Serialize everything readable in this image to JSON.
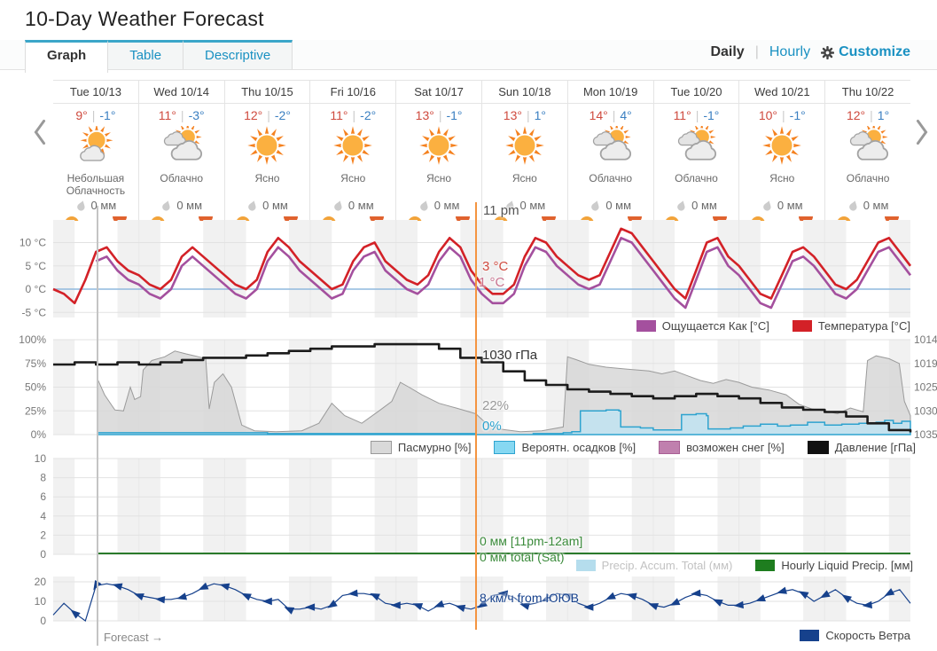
{
  "page": {
    "title": "10-Day Weather Forecast"
  },
  "tabs": {
    "graph": "Graph",
    "table": "Table",
    "descriptive": "Descriptive"
  },
  "view_toggle": {
    "daily": "Daily",
    "hourly": "Hourly",
    "customize": "Customize"
  },
  "forecast_label": "Forecast →",
  "forecast_days": [
    {
      "date": "Tue 10/13",
      "high": "9°",
      "low": "-1°",
      "icon": "partly",
      "condition": "Небольшая Облачность",
      "precip": "0 мм"
    },
    {
      "date": "Wed 10/14",
      "high": "11°",
      "low": "-3°",
      "icon": "mostly",
      "condition": "Облачно",
      "precip": "0 мм"
    },
    {
      "date": "Thu 10/15",
      "high": "12°",
      "low": "-2°",
      "icon": "sunny",
      "condition": "Ясно",
      "precip": "0 мм"
    },
    {
      "date": "Fri 10/16",
      "high": "11°",
      "low": "-2°",
      "icon": "sunny",
      "condition": "Ясно",
      "precip": "0 мм"
    },
    {
      "date": "Sat 10/17",
      "high": "13°",
      "low": "-1°",
      "icon": "sunny",
      "condition": "Ясно",
      "precip": "0 мм"
    },
    {
      "date": "Sun 10/18",
      "high": "13°",
      "low": "1°",
      "icon": "sunny",
      "condition": "Ясно",
      "precip": "0 мм"
    },
    {
      "date": "Mon 10/19",
      "high": "14°",
      "low": "4°",
      "icon": "mostly",
      "condition": "Облачно",
      "precip": "0 мм"
    },
    {
      "date": "Tue 10/20",
      "high": "11°",
      "low": "-1°",
      "icon": "mostly",
      "condition": "Облачно",
      "precip": "0 мм"
    },
    {
      "date": "Wed 10/21",
      "high": "10°",
      "low": "-1°",
      "icon": "sunny",
      "condition": "Ясно",
      "precip": "0 мм"
    },
    {
      "date": "Thu 10/22",
      "high": "12°",
      "low": "1°",
      "icon": "mostly",
      "condition": "Облачно",
      "precip": "0 мм"
    }
  ],
  "hover": {
    "time": "11 pm",
    "temperature": "3 °C",
    "feels_like": "1 °C",
    "pressure": "1030 гПа",
    "cloud_cover": "22%",
    "precip_prob": "0%",
    "precip_hour": "0 мм [11pm-12am]",
    "precip_total": "0 мм total (Sat)",
    "wind": "8 км/ч from ЮЮВ"
  },
  "colors": {
    "accent_tab": "#3ba6c9",
    "link": "#1a91c2",
    "temp_high": "#cf4a3e",
    "temp_low": "#3a7fc1",
    "temp_line": "#d32127",
    "feels_line": "#a4509e",
    "zero_line": "#8fb9dd",
    "cloud_fill": "#d7d7d7",
    "prob_line": "#2ea3cf",
    "pressure_line": "#1c1c1c",
    "precip_green": "#2a7a2b",
    "wind_navy": "#16418c",
    "hover_orange": "#f49440"
  },
  "chart_data": [
    {
      "type": "line",
      "title": "Temperature / Feels Like",
      "ytick_labels": [
        "10 °C",
        "5 °C",
        "0 °C",
        "-5 °C"
      ],
      "ytick_values": [
        10,
        5,
        0,
        -5
      ],
      "ylim": [
        -6.5,
        14.9
      ],
      "zero_line": 0,
      "legend": [
        {
          "label": "Ощущается Как [°C]",
          "color": "#a4509e"
        },
        {
          "label": "Температура [°C]",
          "color": "#d32127"
        }
      ],
      "series": [
        {
          "name": "Температура [°C]",
          "color": "#d32127",
          "t0": 0,
          "dt": 0.125,
          "values": [
            0,
            -1,
            -3,
            2,
            8,
            9,
            6,
            4,
            3,
            1,
            0,
            2,
            7,
            9,
            7,
            5,
            3,
            1,
            0,
            2,
            8,
            11,
            9,
            6,
            4,
            2,
            0,
            1,
            6,
            9,
            10,
            6,
            4,
            2,
            1,
            3,
            8,
            11,
            9,
            4,
            1,
            -1,
            -1,
            1,
            7,
            11,
            10,
            7,
            5,
            3,
            2,
            3,
            8,
            13,
            12,
            9,
            6,
            3,
            0,
            -2,
            4,
            10,
            11,
            7,
            5,
            2,
            -1,
            -2,
            3,
            8,
            9,
            7,
            4,
            1,
            0,
            2,
            6,
            10,
            11,
            8,
            5
          ]
        },
        {
          "name": "Ощущается Как [°C]",
          "color": "#a4509e",
          "t0": 0.5,
          "dt": 0.125,
          "values": [
            6,
            7,
            4,
            2,
            1,
            -1,
            -2,
            0,
            5,
            7,
            5,
            3,
            1,
            -1,
            -2,
            0,
            6,
            9,
            7,
            4,
            2,
            0,
            -2,
            -1,
            4,
            7,
            8,
            4,
            2,
            0,
            -1,
            1,
            6,
            9,
            7,
            2,
            -1,
            -3,
            -3,
            -1,
            5,
            9,
            8,
            5,
            3,
            1,
            0,
            1,
            6,
            11,
            10,
            7,
            4,
            1,
            -2,
            -4,
            2,
            8,
            9,
            5,
            3,
            0,
            -3,
            -4,
            1,
            6,
            7,
            5,
            2,
            -1,
            -2,
            0,
            4,
            8,
            9,
            6,
            3
          ]
        }
      ]
    },
    {
      "type": "area",
      "title": "Cloud cover / Precip probability / Pressure",
      "left_tick_labels": [
        "100%",
        "75%",
        "50%",
        "25%",
        "0%"
      ],
      "left_tick_values": [
        100,
        75,
        50,
        25,
        0
      ],
      "right_tick_labels": [
        "1035",
        "1030",
        "1025",
        "1019",
        "1014"
      ],
      "pressure_range": [
        1014,
        1035
      ],
      "legend": [
        {
          "label": "Пасмурно [%]",
          "color": "#d9d9d9",
          "border": "#999999"
        },
        {
          "label": "Вероятн. осадков [%]",
          "color": "#86d8f2",
          "border": "#2ea3cf"
        },
        {
          "label": "возможен снег [%]",
          "color": "#c080ae",
          "border": "#a85f94"
        },
        {
          "label": "Давление [гПа]",
          "color": "#111111",
          "border": "#111111"
        }
      ],
      "cloud_points": [
        [
          0.52,
          58
        ],
        [
          0.6,
          42
        ],
        [
          0.72,
          26
        ],
        [
          0.82,
          25
        ],
        [
          0.9,
          50
        ],
        [
          0.95,
          37
        ],
        [
          1.02,
          40
        ],
        [
          1.05,
          68
        ],
        [
          1.15,
          78
        ],
        [
          1.3,
          82
        ],
        [
          1.42,
          88
        ],
        [
          1.55,
          85
        ],
        [
          1.65,
          83
        ],
        [
          1.78,
          80
        ],
        [
          1.82,
          27
        ],
        [
          1.88,
          55
        ],
        [
          1.98,
          64
        ],
        [
          2.08,
          50
        ],
        [
          2.2,
          10
        ],
        [
          2.35,
          4
        ],
        [
          2.6,
          3
        ],
        [
          2.9,
          4
        ],
        [
          3.1,
          12
        ],
        [
          3.25,
          33
        ],
        [
          3.4,
          20
        ],
        [
          3.6,
          12
        ],
        [
          3.8,
          25
        ],
        [
          3.95,
          35
        ],
        [
          4.05,
          55
        ],
        [
          4.15,
          50
        ],
        [
          4.3,
          42
        ],
        [
          4.5,
          33
        ],
        [
          4.7,
          28
        ],
        [
          4.93,
          22
        ],
        [
          5.05,
          12
        ],
        [
          5.2,
          6
        ],
        [
          5.45,
          3
        ],
        [
          5.7,
          4
        ],
        [
          5.95,
          8
        ],
        [
          6.0,
          82
        ],
        [
          6.1,
          79
        ],
        [
          6.25,
          74
        ],
        [
          6.45,
          71
        ],
        [
          6.7,
          69
        ],
        [
          6.95,
          67
        ],
        [
          7.1,
          64
        ],
        [
          7.25,
          67
        ],
        [
          7.4,
          62
        ],
        [
          7.55,
          57
        ],
        [
          7.7,
          54
        ],
        [
          7.85,
          58
        ],
        [
          8.0,
          55
        ],
        [
          8.15,
          50
        ],
        [
          8.35,
          47
        ],
        [
          8.55,
          42
        ],
        [
          8.7,
          32
        ],
        [
          8.85,
          27
        ],
        [
          9.0,
          25
        ],
        [
          9.15,
          22
        ],
        [
          9.3,
          28
        ],
        [
          9.45,
          24
        ],
        [
          9.5,
          78
        ],
        [
          9.6,
          83
        ],
        [
          9.75,
          80
        ],
        [
          9.87,
          75
        ],
        [
          9.93,
          35
        ],
        [
          10,
          20
        ]
      ],
      "precip_prob_points": [
        [
          0.52,
          2
        ],
        [
          1.5,
          2
        ],
        [
          2.5,
          1
        ],
        [
          3.5,
          1
        ],
        [
          4.5,
          1
        ],
        [
          4.93,
          0
        ],
        [
          5.6,
          1
        ],
        [
          5.95,
          2
        ],
        [
          6.05,
          3
        ],
        [
          6.15,
          25
        ],
        [
          6.45,
          26
        ],
        [
          6.6,
          25
        ],
        [
          6.62,
          8
        ],
        [
          6.85,
          7
        ],
        [
          7.0,
          5
        ],
        [
          7.3,
          5
        ],
        [
          7.33,
          21
        ],
        [
          7.5,
          22
        ],
        [
          7.62,
          20
        ],
        [
          7.64,
          6
        ],
        [
          7.9,
          7
        ],
        [
          8.05,
          9
        ],
        [
          8.25,
          11
        ],
        [
          8.45,
          9
        ],
        [
          8.6,
          10
        ],
        [
          8.8,
          13
        ],
        [
          9.0,
          10
        ],
        [
          9.2,
          11
        ],
        [
          9.4,
          12
        ],
        [
          9.6,
          13
        ],
        [
          9.7,
          15
        ],
        [
          9.8,
          12
        ],
        [
          9.9,
          14
        ],
        [
          10,
          13
        ]
      ],
      "snow_points": [],
      "pressure_series": {
        "t0": 0,
        "dt": 0.25,
        "values": [
          1029.5,
          1030,
          1029.5,
          1030,
          1029.5,
          1030,
          1030.5,
          1031,
          1031,
          1031.5,
          1032,
          1032.5,
          1033,
          1033.5,
          1033.5,
          1034,
          1034,
          1034,
          1033,
          1031,
          1030,
          1028,
          1026,
          1025,
          1024,
          1023.5,
          1023,
          1022.5,
          1022,
          1022.5,
          1023,
          1022.5,
          1022,
          1021,
          1020,
          1019.5,
          1019,
          1018,
          1016.5,
          1015,
          1014.5
        ]
      }
    },
    {
      "type": "line",
      "title": "Precipitation",
      "ytick_labels": [
        "10",
        "8",
        "6",
        "4",
        "2",
        "0"
      ],
      "ytick_values": [
        10,
        8,
        6,
        4,
        2,
        0
      ],
      "ylim": [
        0,
        10
      ],
      "legend": [
        {
          "label": "Precip. Accum. Total (мм)",
          "color": "#b5dded",
          "text": "#c2c2c2"
        },
        {
          "label": "Hourly Liquid Precip. [мм]",
          "color": "#1e7d1f"
        }
      ],
      "hourly_precip_points": [
        [
          0.52,
          0
        ],
        [
          10,
          0
        ]
      ],
      "accum_points": []
    },
    {
      "type": "line",
      "title": "Wind speed",
      "ytick_labels": [
        "20",
        "10",
        "0"
      ],
      "ytick_values": [
        20,
        10,
        0
      ],
      "ylim": [
        0,
        24
      ],
      "legend": [
        {
          "label": "Скорость Ветра",
          "color": "#16418c"
        }
      ],
      "wind_series": {
        "t0": 0,
        "dt": 0.125,
        "values": [
          3,
          9,
          4,
          0,
          18,
          19,
          18,
          16,
          13,
          12,
          11,
          11,
          12,
          14,
          17,
          19,
          18,
          16,
          13,
          11,
          10,
          11,
          6,
          6,
          7,
          6,
          8,
          13,
          14,
          14,
          13,
          9,
          8,
          9,
          8,
          5,
          8,
          9,
          7,
          6,
          8,
          13,
          14,
          12,
          8,
          9,
          11,
          14,
          13,
          9,
          7,
          9,
          12,
          14,
          13,
          11,
          8,
          7,
          9,
          12,
          14,
          13,
          10,
          8,
          8,
          9,
          11,
          13,
          15,
          16,
          14,
          10,
          13,
          16,
          12,
          9,
          8,
          10,
          14,
          16,
          9
        ]
      }
    }
  ]
}
